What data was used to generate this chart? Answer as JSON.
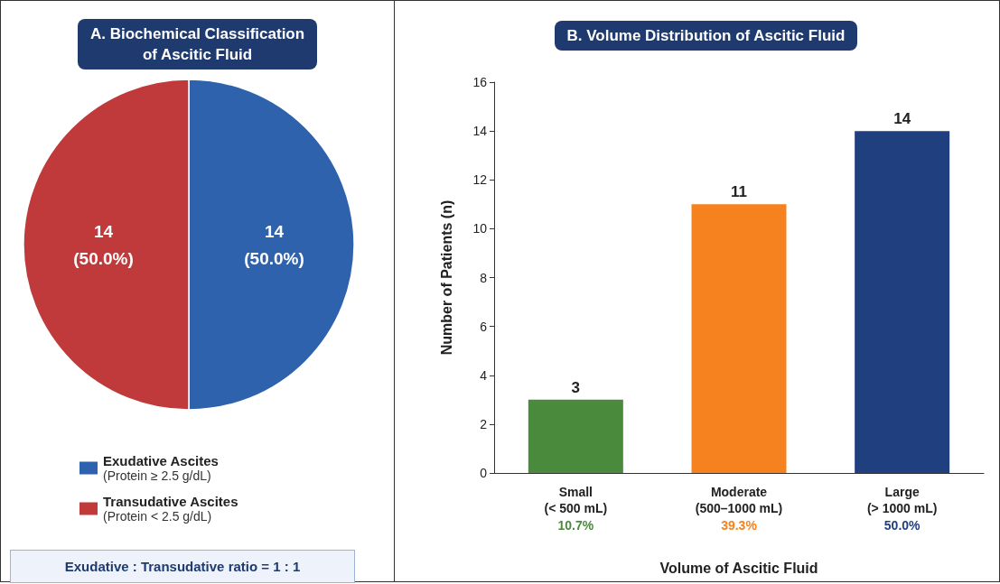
{
  "chart_data": [
    {
      "type": "pie",
      "title": "A. Biochemical Classification\nof Ascitic Fluid",
      "categories": [
        "Exudative Ascites\n(Protein ≥ 2.5 g/dL)",
        "Transudative Ascites\n(Protein < 2.5 g/dL)"
      ],
      "values": [
        14,
        14
      ],
      "colors": [
        "#2e62ad",
        "#c0393b"
      ],
      "value_labels": [
        "14\n(50.0%)",
        "14\n(50.0%)"
      ],
      "legend": "bottom",
      "annotations": [
        "Exudative : Transudative ratio = 1 : 1"
      ]
    },
    {
      "type": "bar",
      "title": "B. Volume Distribution of Ascitic Fluid",
      "categories": [
        "Small\n(< 500 mL)",
        "Moderate\n(500–1000 mL)",
        "Large\n(> 1000 mL)"
      ],
      "values": [
        3,
        11,
        14
      ],
      "colors": [
        "#4a8a3c",
        "#f5821f",
        "#1f3f7e"
      ],
      "xlabel": "Volume of Ascitic Fluid",
      "ylabel": "Number of Patients (n)",
      "ylim": [
        0,
        16
      ],
      "yticks": [
        0,
        2,
        4,
        6,
        8,
        10,
        12,
        14,
        16
      ],
      "data_labels": true,
      "grid": false,
      "annotations": [
        "10.7%",
        "39.3%",
        "50.0%"
      ]
    }
  ]
}
